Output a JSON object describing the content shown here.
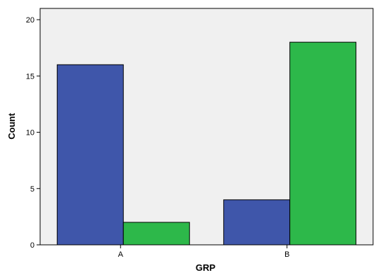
{
  "chart_data": {
    "type": "bar",
    "title": "",
    "xlabel": "GRP",
    "ylabel": "Count",
    "categories": [
      "A",
      "B"
    ],
    "series": [
      {
        "values": [
          16,
          4
        ],
        "color": "#3f56aa"
      },
      {
        "values": [
          2,
          18
        ],
        "color": "#2db84a"
      }
    ],
    "ylim": [
      0,
      21
    ],
    "yticks": [
      "0",
      "5",
      "10",
      "15",
      "20"
    ],
    "grid": false,
    "legend": "none",
    "plot_background": "#f0f0f0"
  }
}
